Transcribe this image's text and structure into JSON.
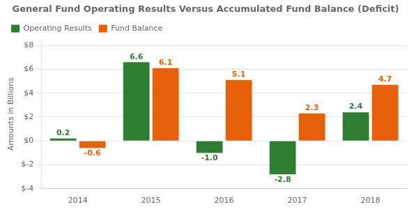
{
  "chart_data": {
    "type": "bar",
    "title": "General Fund Operating Results Versus Accumulated Fund Balance (Deficit)",
    "ylabel": "Amounts in Billions",
    "categories": [
      "2014",
      "2015",
      "2016",
      "2017",
      "2018"
    ],
    "series": [
      {
        "name": "Operating Results",
        "color": "#2E7D32",
        "values": [
          0.2,
          6.6,
          -1.0,
          -2.8,
          2.4
        ],
        "value_labels": [
          "0.2",
          "6.6",
          "-1.0",
          "-2.8",
          "2.4"
        ]
      },
      {
        "name": "Fund Balance",
        "color": "#E8600A",
        "values": [
          -0.6,
          6.1,
          5.1,
          2.3,
          4.7
        ]
      }
    ],
    "ylim": [
      -4,
      8.5
    ],
    "yticks": [
      {
        "value": -4,
        "label": "$-4"
      },
      {
        "value": -2,
        "label": "$-2"
      },
      {
        "value": 0,
        "label": "$0"
      },
      {
        "value": 2,
        "label": "$2"
      },
      {
        "value": 4,
        "label": "$4"
      },
      {
        "value": 6,
        "label": "$6"
      },
      {
        "value": 8,
        "label": "$8"
      }
    ],
    "grid": true,
    "legend": "upper left",
    "data_labels": true
  }
}
